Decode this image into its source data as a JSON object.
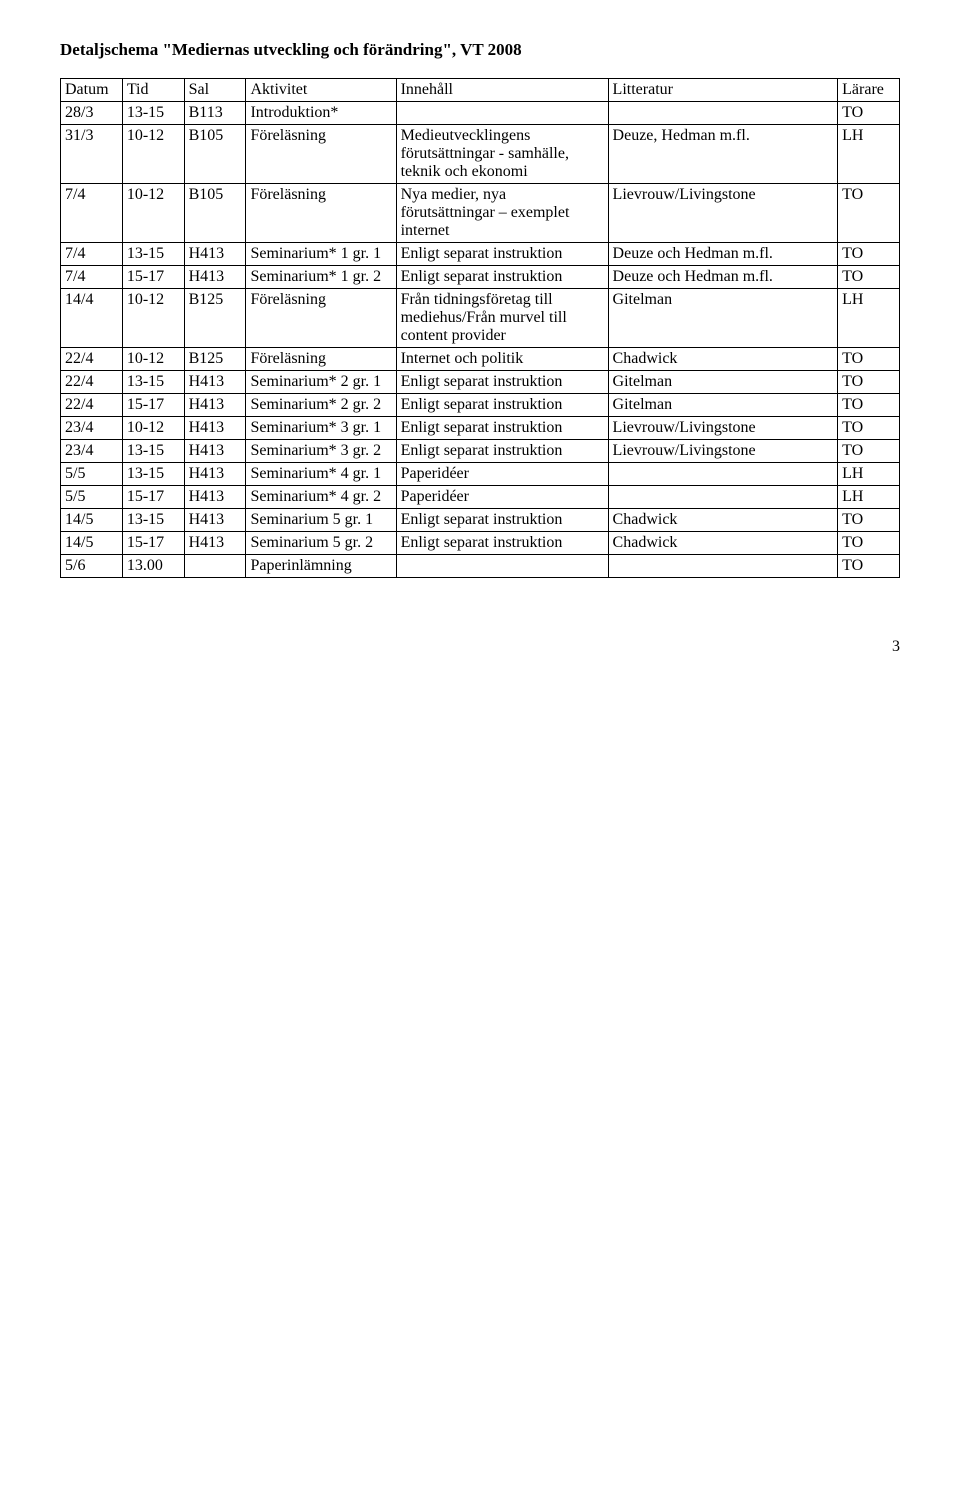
{
  "title": "Detaljschema \"Mediernas utveckling och förändring\", VT 2008",
  "headers": [
    "Datum",
    "Tid",
    "Sal",
    "Aktivitet",
    "Innehåll",
    "Litteratur",
    "Lärare"
  ],
  "rows": [
    {
      "datum": "28/3",
      "tid": "13-15",
      "sal": "B113",
      "aktivitet": "Introduktion*",
      "innehall": "",
      "litteratur": "",
      "larare": "TO"
    },
    {
      "datum": "31/3",
      "tid": "10-12",
      "sal": "B105",
      "aktivitet": "Föreläsning",
      "innehall": "Medieutvecklingens förutsättningar - samhälle, teknik och ekonomi",
      "litteratur": "Deuze, Hedman m.fl.",
      "larare": "LH"
    },
    {
      "datum": "7/4",
      "tid": "10-12",
      "sal": "B105",
      "aktivitet": "Föreläsning",
      "innehall": "Nya medier, nya förutsättningar – exemplet internet",
      "litteratur": "Lievrouw/Livingstone",
      "larare": "TO"
    },
    {
      "datum": "7/4",
      "tid": "13-15",
      "sal": "H413",
      "aktivitet": "Seminarium* 1 gr. 1",
      "innehall": "Enligt separat instruktion",
      "litteratur": "Deuze och Hedman m.fl.",
      "larare": "TO"
    },
    {
      "datum": "7/4",
      "tid": "15-17",
      "sal": "H413",
      "aktivitet": "Seminarium* 1 gr. 2",
      "innehall": "Enligt separat instruktion",
      "litteratur": "Deuze och Hedman m.fl.",
      "larare": "TO"
    },
    {
      "datum": "14/4",
      "tid": "10-12",
      "sal": "B125",
      "aktivitet": "Föreläsning",
      "innehall": "Från tidningsföretag till mediehus/Från murvel till content provider",
      "litteratur": "Gitelman",
      "larare": "LH"
    },
    {
      "datum": "22/4",
      "tid": "10-12",
      "sal": "B125",
      "aktivitet": "Föreläsning",
      "innehall": "Internet och politik",
      "litteratur": "Chadwick",
      "larare": "TO"
    },
    {
      "datum": "22/4",
      "tid": "13-15",
      "sal": "H413",
      "aktivitet": "Seminarium* 2 gr. 1",
      "innehall": "Enligt separat instruktion",
      "litteratur": "Gitelman",
      "larare": "TO"
    },
    {
      "datum": "22/4",
      "tid": "15-17",
      "sal": "H413",
      "aktivitet": "Seminarium* 2 gr. 2",
      "innehall": "Enligt separat instruktion",
      "litteratur": "Gitelman",
      "larare": "TO"
    },
    {
      "datum": "23/4",
      "tid": "10-12",
      "sal": "H413",
      "aktivitet": "Seminarium* 3 gr. 1",
      "innehall": "Enligt separat instruktion",
      "litteratur": "Lievrouw/Livingstone",
      "larare": "TO"
    },
    {
      "datum": "23/4",
      "tid": "13-15",
      "sal": "H413",
      "aktivitet": "Seminarium* 3 gr. 2",
      "innehall": "Enligt separat instruktion",
      "litteratur": "Lievrouw/Livingstone",
      "larare": "TO"
    },
    {
      "datum": "5/5",
      "tid": "13-15",
      "sal": "H413",
      "aktivitet": "Seminarium* 4 gr. 1",
      "innehall": "Paperidéer",
      "litteratur": "",
      "larare": "LH"
    },
    {
      "datum": "5/5",
      "tid": "15-17",
      "sal": "H413",
      "aktivitet": "Seminarium* 4 gr. 2",
      "innehall": "Paperidéer",
      "litteratur": "",
      "larare": "LH"
    },
    {
      "datum": "14/5",
      "tid": "13-15",
      "sal": "H413",
      "aktivitet": "Seminarium 5 gr. 1",
      "innehall": "Enligt separat instruktion",
      "litteratur": "Chadwick",
      "larare": "TO"
    },
    {
      "datum": "14/5",
      "tid": "15-17",
      "sal": "H413",
      "aktivitet": "Seminarium 5 gr. 2",
      "innehall": "Enligt separat instruktion",
      "litteratur": "Chadwick",
      "larare": "TO"
    },
    {
      "datum": "5/6",
      "tid": "13.00",
      "sal": "",
      "aktivitet": "Paperinlämning",
      "innehall": "",
      "litteratur": "",
      "larare": "TO"
    }
  ],
  "pageNumber": "3",
  "colors": {
    "background": "#ffffff",
    "text": "#000000",
    "border": "#000000"
  }
}
